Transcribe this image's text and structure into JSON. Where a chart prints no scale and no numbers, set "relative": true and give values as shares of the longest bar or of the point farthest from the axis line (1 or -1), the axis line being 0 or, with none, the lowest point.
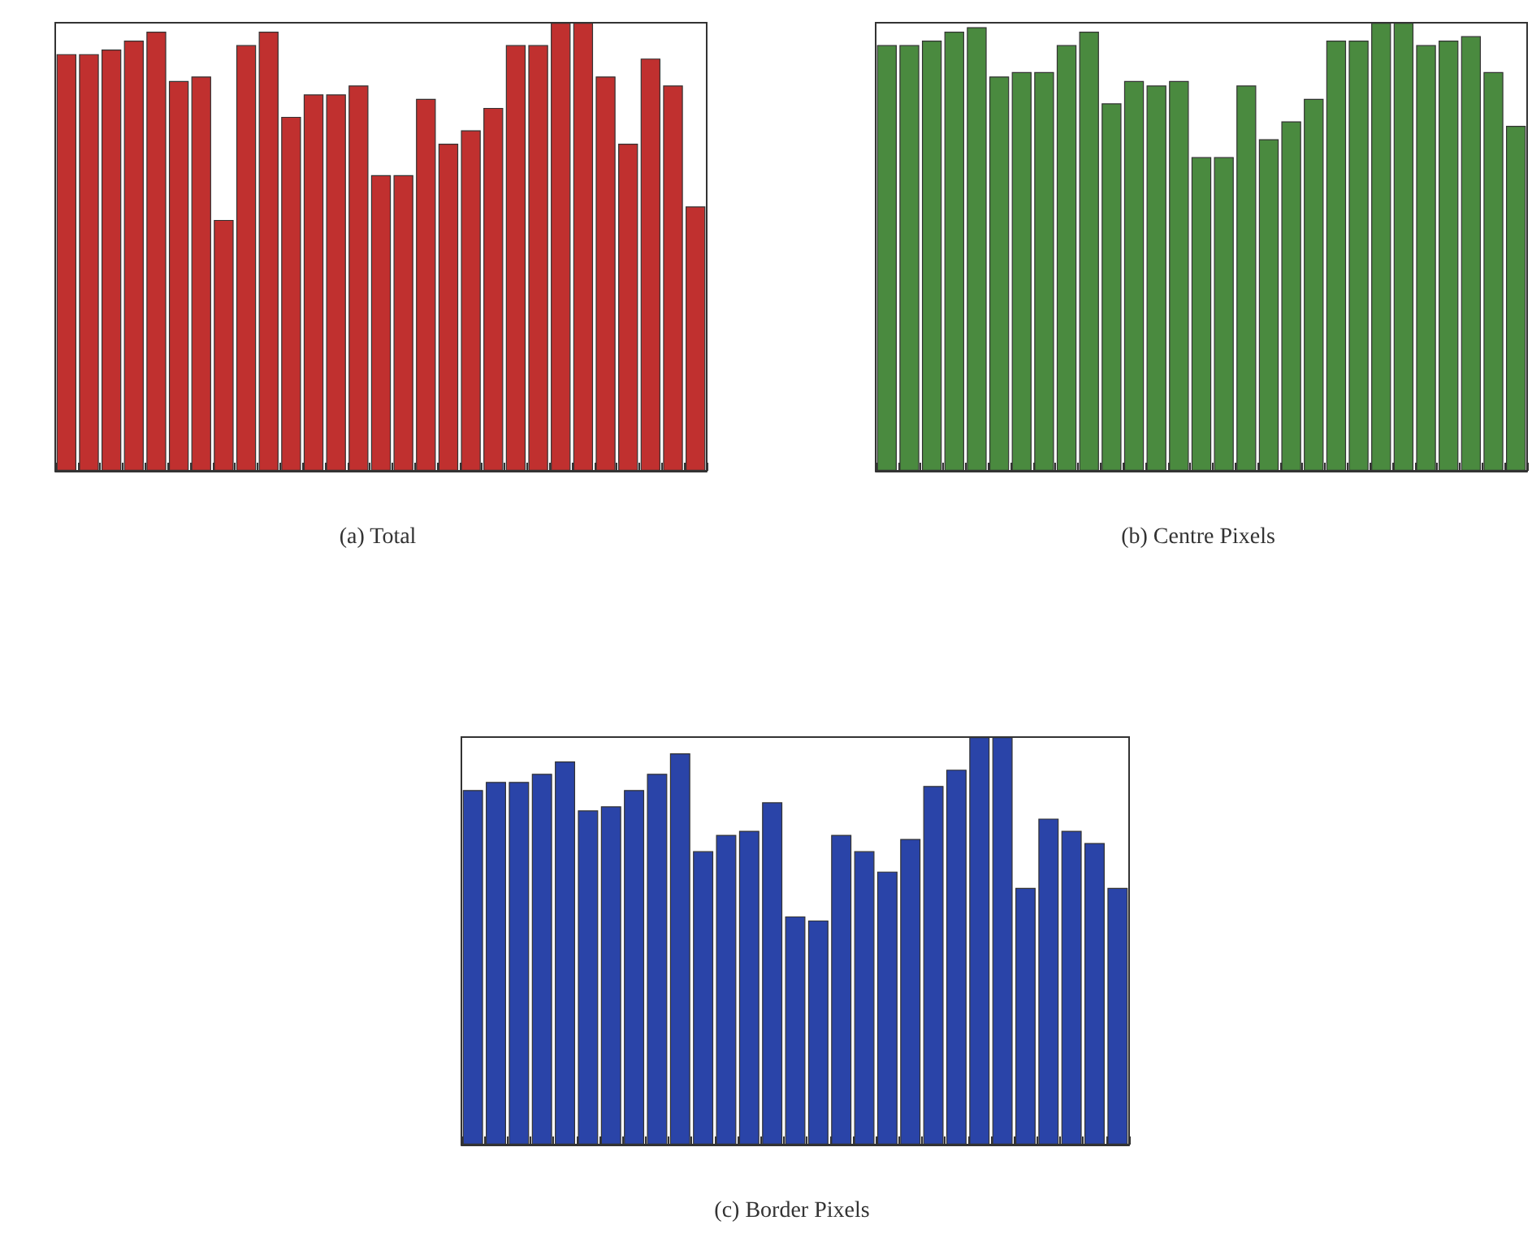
{
  "chart_data": [
    {
      "type": "bar",
      "title": "(a) Total",
      "relative": true,
      "categories": [
        null,
        null,
        null,
        null,
        null,
        null,
        null,
        null,
        null,
        null,
        null,
        null,
        null,
        null,
        null,
        null,
        null,
        null,
        null,
        null,
        null,
        null,
        null,
        null,
        null,
        null,
        null,
        null,
        null
      ],
      "series": [
        {
          "color": "#c0302f",
          "values": [
            0.93,
            0.93,
            0.94,
            0.96,
            0.98,
            0.87,
            0.88,
            0.56,
            0.95,
            0.98,
            0.79,
            0.84,
            0.84,
            0.86,
            0.66,
            0.66,
            0.83,
            0.73,
            0.76,
            0.81,
            0.95,
            0.95,
            1.0,
            1.0,
            0.88,
            0.73,
            0.92,
            0.86,
            0.59
          ]
        }
      ]
    },
    {
      "type": "bar",
      "title": "(b) Centre Pixels",
      "relative": true,
      "categories": [
        null,
        null,
        null,
        null,
        null,
        null,
        null,
        null,
        null,
        null,
        null,
        null,
        null,
        null,
        null,
        null,
        null,
        null,
        null,
        null,
        null,
        null,
        null,
        null,
        null,
        null,
        null,
        null,
        null
      ],
      "series": [
        {
          "color": "#4a8a3f",
          "values": [
            0.95,
            0.95,
            0.96,
            0.98,
            0.99,
            0.88,
            0.89,
            0.89,
            0.95,
            0.98,
            0.82,
            0.87,
            0.86,
            0.87,
            0.7,
            0.7,
            0.86,
            0.74,
            0.78,
            0.83,
            0.96,
            0.96,
            1.0,
            1.0,
            0.95,
            0.96,
            0.97,
            0.89,
            0.77
          ]
        }
      ]
    },
    {
      "type": "bar",
      "title": "(c) Border Pixels",
      "relative": true,
      "categories": [
        null,
        null,
        null,
        null,
        null,
        null,
        null,
        null,
        null,
        null,
        null,
        null,
        null,
        null,
        null,
        null,
        null,
        null,
        null,
        null,
        null,
        null,
        null,
        null,
        null,
        null,
        null,
        null,
        null
      ],
      "series": [
        {
          "color": "#2a44a8",
          "values": [
            0.87,
            0.89,
            0.89,
            0.91,
            0.94,
            0.82,
            0.83,
            0.87,
            0.91,
            0.96,
            0.72,
            0.76,
            0.77,
            0.84,
            0.56,
            0.55,
            0.76,
            0.72,
            0.67,
            0.75,
            0.88,
            0.92,
            1.0,
            1.0,
            0.63,
            0.8,
            0.77,
            0.74,
            0.63
          ]
        }
      ]
    }
  ]
}
